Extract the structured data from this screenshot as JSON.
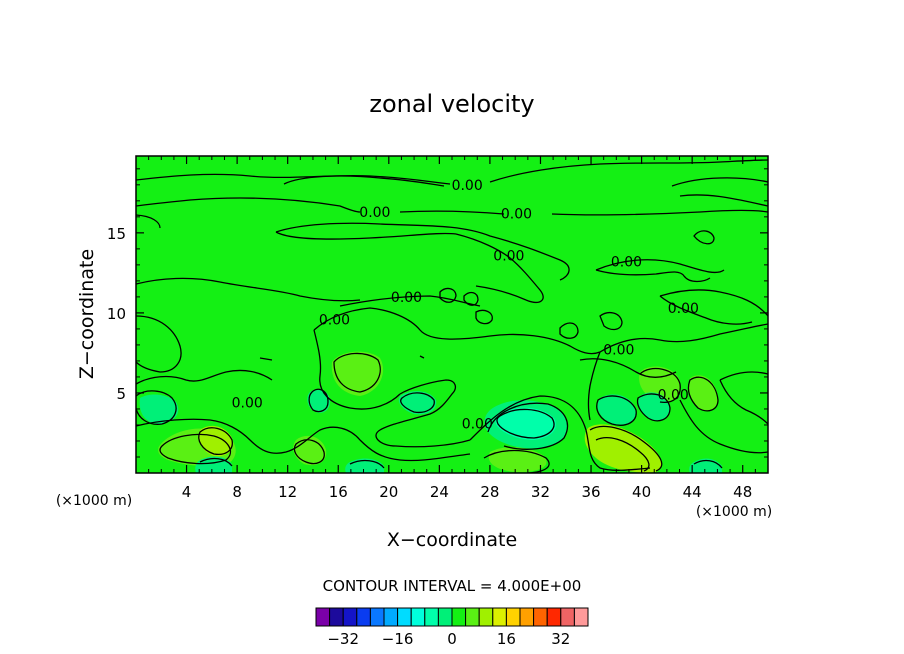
{
  "chart_data": {
    "type": "heatmap",
    "title": "zonal velocity",
    "xlabel": "X−coordinate",
    "ylabel": "Z−coordinate",
    "x_unit_left": "(×1000 m)",
    "x_unit_right": "(×1000 m)",
    "xlim": [
      0,
      50
    ],
    "ylim": [
      0,
      19.8
    ],
    "x_ticks": [
      4,
      8,
      12,
      16,
      20,
      24,
      28,
      32,
      36,
      40,
      44,
      48
    ],
    "x_tick_labels": [
      "4",
      "8",
      "12",
      "16",
      "20",
      "24",
      "28",
      "32",
      "36",
      "40",
      "44",
      "48"
    ],
    "y_ticks": [
      5,
      10,
      15
    ],
    "y_tick_labels": [
      "5",
      "10",
      "15"
    ],
    "contour_labels": [
      {
        "text": "0.00",
        "x": 26.2,
        "y": 18.0
      },
      {
        "text": "0.00",
        "x": 18.9,
        "y": 16.3
      },
      {
        "text": "0.00",
        "x": 30.1,
        "y": 16.2
      },
      {
        "text": "0.00",
        "x": 29.5,
        "y": 13.6
      },
      {
        "text": "0.00",
        "x": 38.8,
        "y": 13.2
      },
      {
        "text": "0.00",
        "x": 21.4,
        "y": 11.0
      },
      {
        "text": "0.00",
        "x": 15.7,
        "y": 9.6
      },
      {
        "text": "0.00",
        "x": 43.3,
        "y": 10.3
      },
      {
        "text": "0.00",
        "x": 38.2,
        "y": 7.7
      },
      {
        "text": "0.00",
        "x": 8.8,
        "y": 4.4
      },
      {
        "text": "0.00",
        "x": 27.0,
        "y": 3.1
      },
      {
        "text": "0.00",
        "x": 42.5,
        "y": 4.9
      }
    ],
    "contour_interval_text": "CONTOUR INTERVAL = 4.000E+00",
    "colorbar": {
      "levels": [
        -36,
        -32,
        -28,
        -24,
        -20,
        -16,
        -12,
        -8,
        -4,
        0,
        4,
        8,
        12,
        16,
        20,
        24,
        28,
        32,
        36
      ],
      "colors": [
        "#7a00a8",
        "#1c0a9c",
        "#1414c8",
        "#0a3cf0",
        "#0a78ff",
        "#00aaff",
        "#00dcff",
        "#00ffdc",
        "#00ffaa",
        "#00f078",
        "#14f014",
        "#5af014",
        "#a0f000",
        "#dcf000",
        "#ffd200",
        "#ffa000",
        "#ff6400",
        "#ff2800",
        "#f06464",
        "#ff9a9a"
      ],
      "tick_labels": [
        "−32",
        "−16",
        "0",
        "16",
        "32"
      ],
      "tick_values": [
        -32,
        -16,
        0,
        16,
        32
      ]
    },
    "colors": {
      "background": "#14f014",
      "slightly_positive": "#5af014",
      "positive": "#a0f000",
      "slightly_negative": "#00f078",
      "negative": "#00ffaa",
      "more_negative": "#00ffdc"
    }
  }
}
